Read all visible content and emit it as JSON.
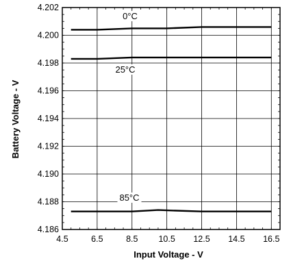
{
  "chart_data": {
    "type": "line",
    "title": "",
    "xlabel": "Input Voltage - V",
    "ylabel": "Battery Voltage - V",
    "xlim": [
      4.5,
      17.0
    ],
    "ylim": [
      4.186,
      4.202
    ],
    "grid": true,
    "x_ticks": [
      "4.5",
      "6.5",
      "8.5",
      "10.5",
      "12.5",
      "14.5",
      "16.5"
    ],
    "y_ticks": [
      "4.202",
      "4.200",
      "4.198",
      "4.196",
      "4.194",
      "4.192",
      "4.190",
      "4.188",
      "4.186"
    ],
    "series": [
      {
        "name": "0°C",
        "x": [
          5.0,
          6.5,
          8.5,
          10.5,
          12.5,
          14.5,
          16.5
        ],
        "y": [
          4.2004,
          4.2004,
          4.2005,
          4.2005,
          4.2006,
          4.2006,
          4.2006
        ]
      },
      {
        "name": "25°C",
        "x": [
          5.0,
          6.5,
          8.5,
          10.5,
          12.5,
          14.5,
          16.5
        ],
        "y": [
          4.1983,
          4.1983,
          4.1984,
          4.1984,
          4.1984,
          4.1984,
          4.1984
        ]
      },
      {
        "name": "85°C",
        "x": [
          5.0,
          6.5,
          8.5,
          10.0,
          12.5,
          14.5,
          16.5
        ],
        "y": [
          4.1873,
          4.1873,
          4.1873,
          4.1874,
          4.1873,
          4.1873,
          4.1873
        ]
      }
    ]
  }
}
